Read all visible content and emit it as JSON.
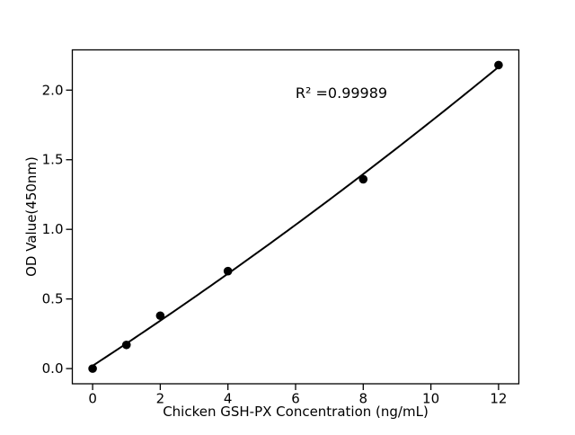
{
  "figure": {
    "background": "#ffffff",
    "foreground": "#000000"
  },
  "chart_data": {
    "type": "scatter",
    "title": "",
    "xlabel": "Chicken GSH-PX Concentration (ng/mL)",
    "ylabel": "OD Value(450nm)",
    "annotation": "R² =0.99989",
    "r_squared": 0.99989,
    "x": [
      0,
      1,
      2,
      4,
      8,
      12
    ],
    "y": [
      0.0,
      0.17,
      0.38,
      0.7,
      1.36,
      2.18
    ],
    "x_ticks": [
      0,
      2,
      4,
      6,
      8,
      10,
      12
    ],
    "y_ticks": [
      0.0,
      0.5,
      1.0,
      1.5,
      2.0
    ],
    "xlim": [
      -0.6,
      12.6
    ],
    "ylim": [
      -0.109,
      2.289
    ],
    "fit_type": "quadratic",
    "grid": false,
    "legend_position": "none",
    "line_color": "#000000",
    "marker_color": "#000000",
    "text_color": "#000000",
    "marker_radius": 4.8
  }
}
